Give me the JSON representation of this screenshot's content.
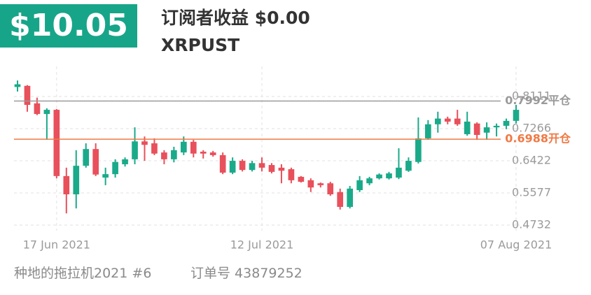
{
  "header": {
    "amount": "$10.05",
    "earnings": "订阅者收益 $0.00",
    "symbol": "XRPUST"
  },
  "chart_data": {
    "type": "candlestick",
    "categories": [
      null,
      null,
      null,
      null,
      "17 Jun 2021",
      null,
      null,
      null,
      null,
      null,
      null,
      null,
      null,
      null,
      null,
      null,
      null,
      null,
      null,
      null,
      null,
      null,
      null,
      null,
      null,
      "12 Jul 2021",
      null,
      null,
      null,
      null,
      null,
      null,
      null,
      null,
      null,
      null,
      null,
      null,
      null,
      null,
      null,
      null,
      null,
      null,
      null,
      null,
      null,
      null,
      null,
      null,
      null,
      "07 Aug 2021"
    ],
    "open": [
      0.836,
      0.839,
      0.793,
      0.765,
      0.776,
      0.602,
      0.554,
      0.629,
      0.673,
      0.598,
      0.607,
      0.633,
      0.646,
      0.693,
      0.688,
      0.664,
      0.646,
      0.664,
      0.692,
      0.666,
      0.664,
      0.657,
      0.611,
      0.642,
      0.618,
      0.636,
      0.631,
      0.624,
      0.62,
      0.6,
      0.591,
      0.583,
      0.583,
      0.56,
      0.521,
      0.565,
      0.583,
      0.596,
      0.596,
      0.598,
      0.616,
      0.639,
      0.701,
      0.738,
      0.753,
      0.753,
      0.712,
      0.74,
      0.716,
      0.73,
      0.734,
      0.747
    ],
    "high": [
      0.853,
      0.841,
      0.808,
      0.78,
      0.778,
      0.624,
      0.67,
      0.688,
      0.688,
      0.624,
      0.646,
      0.651,
      0.73,
      0.706,
      0.701,
      0.67,
      0.679,
      0.706,
      0.697,
      0.67,
      0.668,
      0.664,
      0.651,
      0.646,
      0.642,
      0.651,
      0.636,
      0.633,
      0.624,
      0.602,
      0.596,
      0.585,
      0.587,
      0.569,
      0.576,
      0.602,
      0.6,
      0.609,
      0.613,
      0.675,
      0.651,
      0.756,
      0.749,
      0.771,
      0.758,
      0.776,
      0.771,
      0.743,
      0.743,
      0.74,
      0.753,
      0.789
    ],
    "low": [
      0.824,
      0.771,
      0.762,
      0.697,
      0.596,
      0.504,
      0.517,
      0.624,
      0.602,
      0.578,
      0.598,
      0.627,
      0.633,
      0.642,
      0.657,
      0.633,
      0.638,
      0.657,
      0.651,
      0.648,
      0.653,
      0.607,
      0.607,
      0.614,
      0.614,
      0.614,
      0.609,
      0.583,
      0.583,
      0.585,
      0.56,
      0.572,
      0.55,
      0.514,
      0.517,
      0.56,
      0.578,
      0.593,
      0.593,
      0.594,
      0.613,
      0.635,
      0.697,
      0.716,
      0.738,
      0.734,
      0.708,
      0.697,
      0.697,
      0.706,
      0.725,
      0.74
    ],
    "close": [
      0.843,
      0.789,
      0.765,
      0.776,
      0.602,
      0.554,
      0.629,
      0.673,
      0.606,
      0.607,
      0.639,
      0.646,
      0.693,
      0.684,
      0.661,
      0.646,
      0.67,
      0.692,
      0.661,
      0.661,
      0.657,
      0.611,
      0.642,
      0.618,
      0.636,
      0.624,
      0.613,
      0.616,
      0.591,
      0.587,
      0.572,
      0.578,
      0.554,
      0.521,
      0.569,
      0.591,
      0.596,
      0.606,
      0.609,
      0.624,
      0.642,
      0.701,
      0.738,
      0.753,
      0.745,
      0.738,
      0.745,
      0.71,
      0.73,
      0.734,
      0.747,
      0.776
    ],
    "up_color": "#1aaa8a",
    "down_color": "#e8505b",
    "ylim": [
      0.4732,
      0.89
    ],
    "yticks": [
      0.4732,
      0.5577,
      0.6422,
      0.7266,
      0.8111
    ],
    "grid": true,
    "levels": [
      {
        "value": 0.7992,
        "label": "0.7992平仓",
        "color": "#9a9a9a"
      },
      {
        "value": 0.6988,
        "label": "0.6988开仓",
        "color": "#f07a45"
      }
    ]
  },
  "footer": {
    "strategy": "种地的拖拉机2021 #6",
    "order": "订单号 43879252"
  }
}
